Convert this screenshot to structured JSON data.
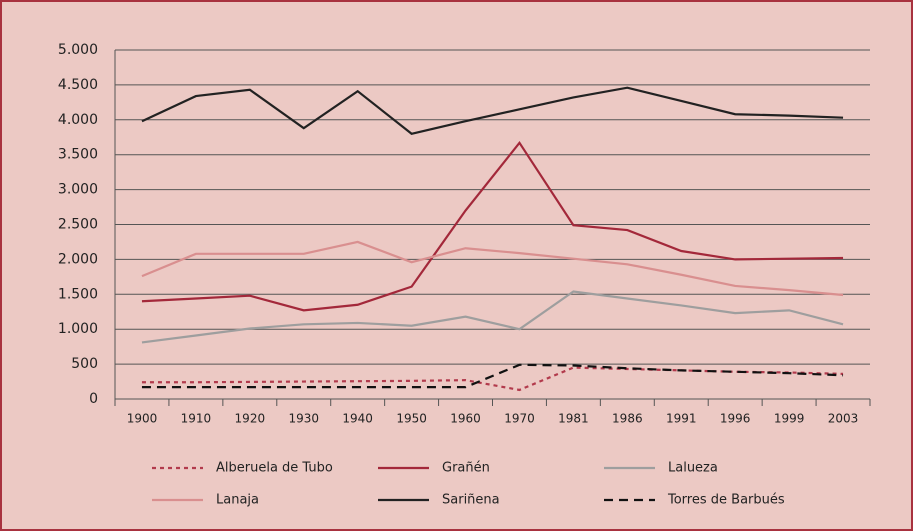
{
  "chart_data": {
    "type": "line",
    "categories": [
      "1900",
      "1910",
      "1920",
      "1930",
      "1940",
      "1950",
      "1960",
      "1970",
      "1981",
      "1986",
      "1991",
      "1996",
      "1999",
      "2003"
    ],
    "series": [
      {
        "name": "Alberuela de Tubo",
        "color": "#b23a4c",
        "dash": "dotted",
        "values": [
          240,
          240,
          245,
          250,
          255,
          260,
          270,
          130,
          450,
          430,
          410,
          390,
          380,
          360
        ]
      },
      {
        "name": "Grañén",
        "color": "#a3283a",
        "dash": "solid",
        "values": [
          1400,
          1440,
          1480,
          1270,
          1350,
          1610,
          2700,
          3670,
          2490,
          2420,
          2120,
          2000,
          2010,
          2020
        ]
      },
      {
        "name": "Lalueza",
        "color": "#9e9e9e",
        "dash": "solid",
        "values": [
          810,
          910,
          1010,
          1070,
          1090,
          1050,
          1180,
          1000,
          1540,
          1440,
          1340,
          1230,
          1270,
          1070
        ]
      },
      {
        "name": "Lanaja",
        "color": "#d98f8f",
        "dash": "solid",
        "values": [
          1760,
          2080,
          2080,
          2080,
          2250,
          1960,
          2160,
          2090,
          2010,
          1930,
          1780,
          1620,
          1560,
          1490
        ]
      },
      {
        "name": "Sariñena",
        "color": "#222222",
        "dash": "solid",
        "values": [
          3980,
          4340,
          4430,
          3880,
          4410,
          3800,
          3980,
          4150,
          4320,
          4460,
          4270,
          4080,
          4060,
          4030
        ]
      },
      {
        "name": "Torres de Barbués",
        "color": "#111111",
        "dash": "dashed",
        "values": [
          170,
          170,
          170,
          170,
          170,
          170,
          170,
          490,
          480,
          440,
          410,
          390,
          370,
          340
        ]
      }
    ],
    "ylim": [
      0,
      5000
    ],
    "yticks": [
      0,
      500,
      {
        "value": 1000,
        "label": "1.000"
      },
      {
        "value": 1500,
        "label": "1.500"
      },
      {
        "value": 2000,
        "label": "2.000"
      },
      {
        "value": 2500,
        "label": "2.500"
      },
      {
        "value": 3000,
        "label": "3.000"
      },
      {
        "value": 3500,
        "label": "3.500"
      },
      {
        "value": 4000,
        "label": "4.000"
      },
      {
        "value": 4500,
        "label": "4.500"
      },
      {
        "value": 5000,
        "label": "5.000"
      }
    ],
    "grid": true
  }
}
